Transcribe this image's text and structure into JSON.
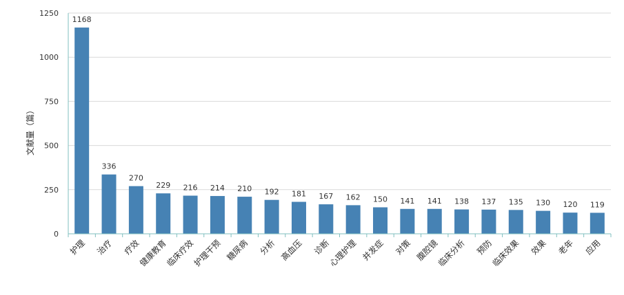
{
  "chart_data": {
    "type": "bar",
    "title": "",
    "xlabel": "",
    "ylabel": "文献量（篇）",
    "ylim": [
      0,
      1250
    ],
    "yticks": [
      0,
      250,
      500,
      750,
      1000,
      1250
    ],
    "grid": true,
    "legend": "none",
    "categories": [
      "护理",
      "治疗",
      "疗效",
      "健康教育",
      "临床疗效",
      "护理干预",
      "糖尿病",
      "分析",
      "高血压",
      "诊断",
      "心理护理",
      "并发症",
      "对策",
      "腹腔镜",
      "临床分析",
      "预防",
      "临床效果",
      "效果",
      "老年",
      "应用"
    ],
    "values": [
      1168,
      336,
      270,
      229,
      216,
      214,
      210,
      192,
      181,
      167,
      162,
      150,
      141,
      141,
      138,
      137,
      135,
      130,
      120,
      119
    ],
    "colors": {
      "bar": "#4682b4",
      "grid": "#d9d9d9",
      "axis": "#7fbfbf",
      "text": "#333333"
    }
  }
}
